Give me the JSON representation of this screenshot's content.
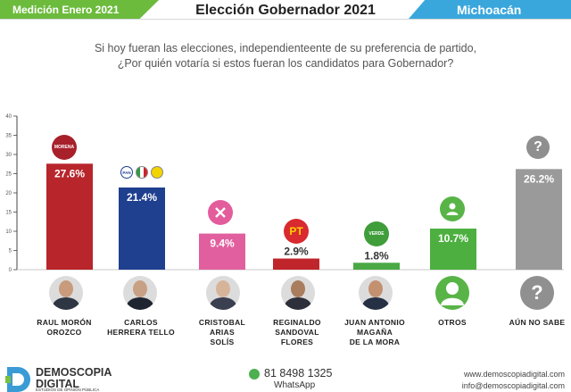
{
  "header": {
    "left": "Medición Enero 2021",
    "title": "Elección Gobernador 2021",
    "right": "Michoacán"
  },
  "question": {
    "line1": "Si hoy fueran las elecciones, independienteente de su preferencia de partido,",
    "line2": "¿Por quién votaría si estos fueran los candidatos para Gobernador?"
  },
  "chart_data": {
    "type": "bar",
    "categories": [
      "RAUL MORÓN OROZCO",
      "CARLOS HERRERA TELLO",
      "CRISTOBAL ARIAS SOLÍS",
      "REGINALDO SANDOVAL FLORES",
      "JUAN ANTONIO MAGAÑA DE LA MORA",
      "OTROS",
      "AÚN NO SABE"
    ],
    "values": [
      27.6,
      21.4,
      9.4,
      2.9,
      1.8,
      10.7,
      26.2
    ],
    "value_labels": [
      "27.6%",
      "21.4%",
      "9.4%",
      "2.9%",
      "1.8%",
      "10.7%",
      "26.2%"
    ],
    "colors": [
      "#b8252b",
      "#1f3f8f",
      "#e15f9e",
      "#c0252c",
      "#4aa845",
      "#4caf3f",
      "#9a9a9a"
    ],
    "yticks": [
      "0",
      "5",
      "10",
      "15",
      "20",
      "25",
      "30",
      "35",
      "40"
    ],
    "ylim": [
      0,
      40
    ],
    "grid": false,
    "legend": "none"
  },
  "candidates": [
    {
      "line1": "RAUL MORÓN",
      "line2": "OROZCO",
      "line3": ""
    },
    {
      "line1": "CARLOS",
      "line2": "HERRERA TELLO",
      "line3": ""
    },
    {
      "line1": "CRISTOBAL",
      "line2": "ARIAS",
      "line3": "SOLÍS"
    },
    {
      "line1": "REGINALDO",
      "line2": "SANDOVAL",
      "line3": "FLORES"
    },
    {
      "line1": "JUAN ANTONIO",
      "line2": "MAGAÑA",
      "line3": "DE LA MORA"
    },
    {
      "line1": "OTROS",
      "line2": "",
      "line3": ""
    },
    {
      "line1": "AÚN NO SABE",
      "line2": "",
      "line3": ""
    }
  ],
  "logos": {
    "morena": "MORENA",
    "pan": "PAN",
    "pt": "PT",
    "verde": "VERDE",
    "question_mark": "?"
  },
  "icons": {
    "person": "person-icon",
    "question": "question-icon",
    "whatsapp": "whatsapp-icon"
  },
  "footer": {
    "brand1": "DEMOSCOPIA",
    "brand2": "DIGITAL",
    "brand_tagline": "ESTUDIOS DE OPINIÓN PÚBLICA",
    "phone": "81 8498 1325",
    "whatsapp_label": "WhatsApp",
    "website": "www.demoscopiadigital.com",
    "email": "info@demoscopiadigital.com"
  }
}
